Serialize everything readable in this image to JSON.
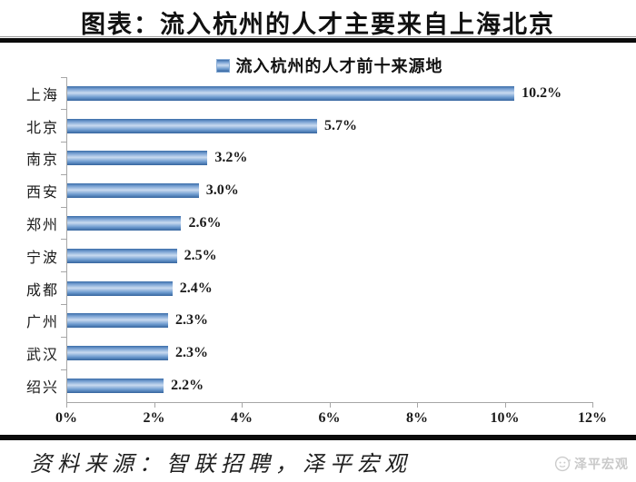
{
  "page": {
    "title": "图表：流入杭州的人才主要来自上海北京",
    "footer": {
      "source": "资料来源：智联招聘，泽平宏观",
      "logo_text": "泽平宏观",
      "logo_icon": "whale-circle-icon"
    }
  },
  "chart_data": {
    "type": "bar",
    "orientation": "horizontal",
    "legend": "流入杭州的人才前十来源地",
    "legend_position": "top-center",
    "categories": [
      "上海",
      "北京",
      "南京",
      "西安",
      "郑州",
      "宁波",
      "成都",
      "广州",
      "武汉",
      "绍兴"
    ],
    "values": [
      10.2,
      5.7,
      3.2,
      3.0,
      2.6,
      2.5,
      2.4,
      2.3,
      2.3,
      2.2
    ],
    "value_labels": [
      "10.2%",
      "5.7%",
      "3.2%",
      "3.0%",
      "2.6%",
      "2.5%",
      "2.4%",
      "2.3%",
      "2.3%",
      "2.2%"
    ],
    "x_ticks": [
      "0%",
      "2%",
      "4%",
      "6%",
      "8%",
      "10%",
      "12%"
    ],
    "xlim": [
      0,
      12
    ],
    "grid": false,
    "colors": {
      "bar_gradient": [
        "#3a6ca8",
        "#7ba3d4",
        "#c9daf0",
        "#6d9bcf",
        "#35649e"
      ],
      "axis": "#a6a6a6",
      "text": "#111111"
    }
  }
}
